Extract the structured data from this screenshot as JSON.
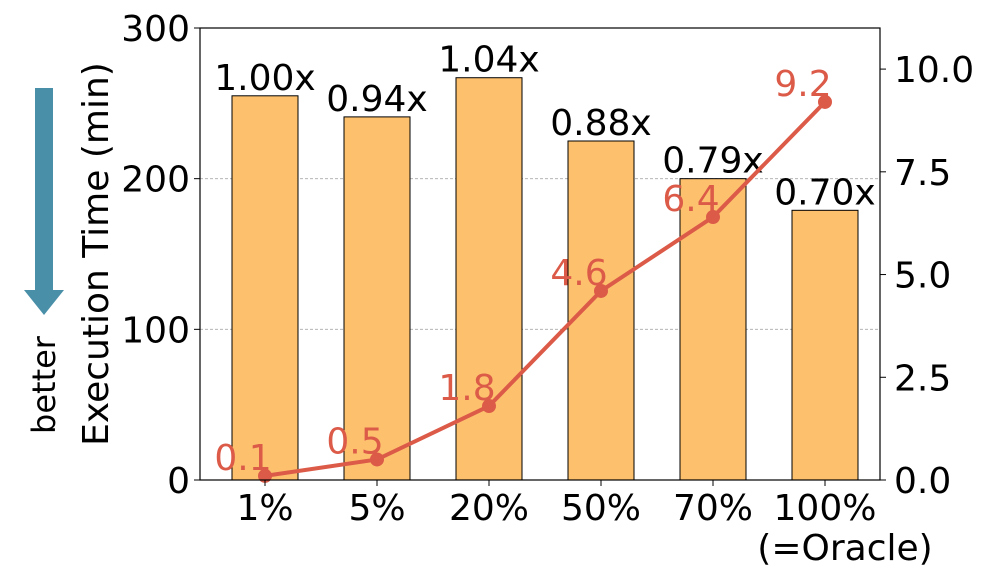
{
  "chart_data": {
    "type": "bar_line",
    "y_label": "Execution Time (min)",
    "annotation": "better",
    "categories": [
      "1%",
      "5%",
      "20%",
      "50%",
      "70%",
      "100%\n(=Oracle)"
    ],
    "series": [
      {
        "type": "bar",
        "color": "#fdc16e",
        "values": [
          255,
          241,
          267,
          225,
          200,
          179
        ],
        "bar_annotations": [
          "1.00x",
          "0.94x",
          "1.04x",
          "0.88x",
          "0.79x",
          "0.70x"
        ]
      },
      {
        "type": "line",
        "axis": "y2",
        "color": "#dc5a48",
        "values": [
          0.1,
          0.5,
          1.8,
          4.6,
          6.4,
          9.2
        ]
      }
    ],
    "ylim": [
      0,
      300
    ],
    "yticks": [
      0,
      100,
      200,
      300
    ],
    "y2lim": [
      0,
      11
    ],
    "y2ticks": [
      {
        "value": 0,
        "label": "0.0"
      },
      {
        "value": 2.5,
        "label": "2.5"
      },
      {
        "value": 5,
        "label": "5.0"
      },
      {
        "value": 7.5,
        "label": "7.5"
      },
      {
        "value": 10,
        "label": "10.0"
      }
    ],
    "grid": true
  }
}
